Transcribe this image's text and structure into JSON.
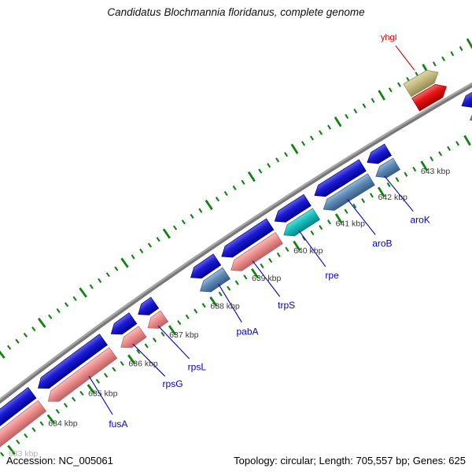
{
  "title": "Candidatus Blochmannia floridanus, complete genome",
  "footer": {
    "accession": "Accession: NC_005061",
    "stats": "Topology: circular; Length: 705,557 bp; Genes: 625"
  },
  "chart_data": {
    "type": "genome-map",
    "organism": "Candidatus Blochmannia floridanus",
    "accession": "NC_005061",
    "topology": "circular",
    "length_bp": "705,557",
    "gene_count": 625,
    "visible_range_kbp": [
      633,
      644
    ],
    "ruler": {
      "unit": "kbp",
      "minor_tick_interval_kbp": 0.2,
      "major_tick_interval_kbp": 1,
      "labels": [
        {
          "kbp": 633,
          "text": "633 kbp",
          "faded": true
        },
        {
          "kbp": 634,
          "text": "634 kbp",
          "faded": false
        },
        {
          "kbp": 635,
          "text": "635 kbp",
          "faded": false
        },
        {
          "kbp": 636,
          "text": "636 kbp",
          "faded": false
        },
        {
          "kbp": 637,
          "text": "637 kbp",
          "faded": false
        },
        {
          "kbp": 638,
          "text": "638 kbp",
          "faded": false
        },
        {
          "kbp": 639,
          "text": "639 kbp",
          "faded": false
        },
        {
          "kbp": 640,
          "text": "640 kbp",
          "faded": false
        },
        {
          "kbp": 641,
          "text": "641 kbp",
          "faded": false
        },
        {
          "kbp": 642,
          "text": "642 kbp",
          "faded": false
        },
        {
          "kbp": 643,
          "text": "643 kbp",
          "faded": false
        }
      ]
    },
    "genes": [
      {
        "name": "",
        "start": 632.4,
        "end": 634.02,
        "strand": "rev",
        "func_color": "salmon"
      },
      {
        "name": "fusA",
        "start": 634.17,
        "end": 635.78,
        "strand": "rev",
        "func_color": "salmon",
        "label_kbp": 635.02,
        "anchor_kbp": 635.12
      },
      {
        "name": "rpsG",
        "start": 635.97,
        "end": 636.5,
        "strand": "rev",
        "func_color": "salmon",
        "label_kbp": 636.38,
        "anchor_kbp": 636.2
      },
      {
        "name": "rpsL",
        "start": 636.63,
        "end": 637.03,
        "strand": "rev",
        "func_color": "salmon",
        "label_kbp": 636.98,
        "anchor_kbp": 636.82
      },
      {
        "name": "pabA",
        "start": 637.9,
        "end": 638.53,
        "strand": "rev",
        "func_color": "steel",
        "label_kbp": 638.22,
        "anchor_kbp": 638.28
      },
      {
        "name": "trpS",
        "start": 638.64,
        "end": 639.79,
        "strand": "rev",
        "func_color": "salmon",
        "label_kbp": 639.17,
        "anchor_kbp": 639.1
      },
      {
        "name": "rpe",
        "start": 639.9,
        "end": 640.67,
        "strand": "rev",
        "func_color": "teal",
        "label_kbp": 640.27,
        "anchor_kbp": 640.2
      },
      {
        "name": "aroB",
        "start": 640.84,
        "end": 641.96,
        "strand": "rev",
        "func_color": "steel",
        "label_kbp": 641.47,
        "anchor_kbp": 641.35
      },
      {
        "name": "aroK",
        "start": 642.07,
        "end": 642.55,
        "strand": "rev",
        "func_color": "steel",
        "label_kbp": 642.37,
        "anchor_kbp": 642.22
      },
      {
        "name": "",
        "start": 644.25,
        "end": 645.8,
        "strand": "rev",
        "func_color": "steel"
      },
      {
        "name": "yhgI",
        "start": 643.48,
        "end": 644.18,
        "strand": "fwd",
        "func_color": "tan",
        "label_kbp": 643.7,
        "anchor_kbp": 643.8,
        "label_radius": 5343
      }
    ],
    "colors": {
      "cds_rev": {
        "base": "#1b1bd3",
        "light": "#6b6bf0",
        "dark": "#000090"
      },
      "cds_fwd": {
        "base": "#e91414",
        "light": "#f77272",
        "dark": "#9b0000"
      },
      "salmon": {
        "base": "#f08e8e",
        "light": "#f9c3c3",
        "dark": "#b65f5f"
      },
      "steel": {
        "base": "#5e8ab8",
        "light": "#9fc0dc",
        "dark": "#35587e"
      },
      "teal": {
        "base": "#18bebe",
        "light": "#6ae0e0",
        "dark": "#0a8080"
      },
      "tan": {
        "base": "#c6bc82",
        "light": "#e0daae",
        "dark": "#908850"
      },
      "tick_green": "#0d850d",
      "backbone_light": "#a6a6a6",
      "backbone_dark": "#787878",
      "gene_label": "#0000cc",
      "gene_label_fwd": "#dd0000",
      "ruler_label": "#3a3a3a",
      "ruler_label_faded": "#b3b3b3"
    }
  }
}
